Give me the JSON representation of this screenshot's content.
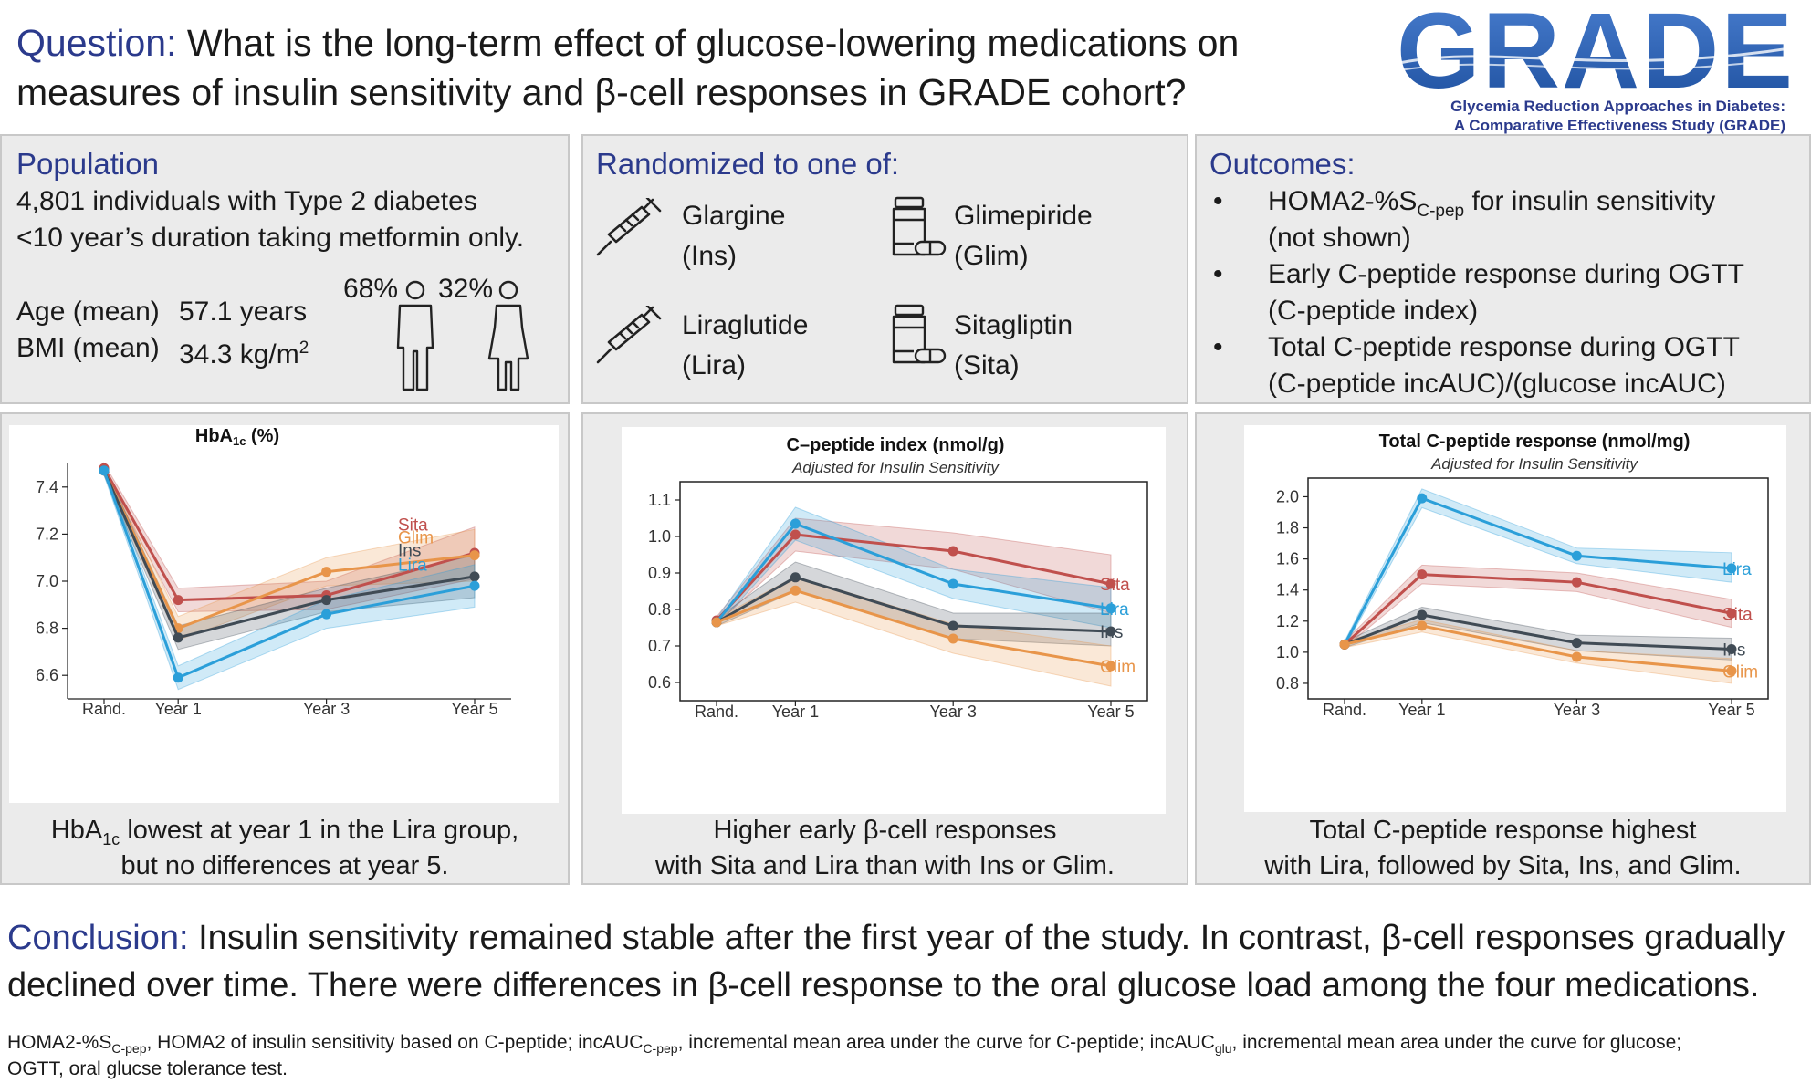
{
  "question": {
    "label": "Question:",
    "line1": "What is the long-term effect of glucose-lowering medications on",
    "line2": "measures of insulin sensitivity and β-cell responses in GRADE cohort?"
  },
  "logo": {
    "wordmark": "GRADE",
    "line1": "Glycemia Reduction Approaches in Diabetes:",
    "line2": "A Comparative Effectiveness Study (GRADE)"
  },
  "population": {
    "title": "Population",
    "line1": "4,801 individuals with Type 2 diabetes",
    "line2": "<10 year’s duration taking metformin only.",
    "age_label": "Age (mean)",
    "age_value": "57.1 years",
    "bmi_label": "BMI (mean)",
    "bmi_value": "34.3 kg/m",
    "bmi_sup": "2",
    "male_pct": "68%",
    "female_pct": "32%",
    "male_icon": "male-person-icon",
    "female_icon": "female-person-icon"
  },
  "randomized": {
    "title": "Randomized to one of:",
    "arms": [
      {
        "name": "Glargine",
        "abbr": "(Ins)",
        "icon": "syringe-icon"
      },
      {
        "name": "Glimepiride",
        "abbr": "(Glim)",
        "icon": "pill-bottle-icon"
      },
      {
        "name": "Liraglutide",
        "abbr": "(Lira)",
        "icon": "syringe-icon"
      },
      {
        "name": "Sitagliptin",
        "abbr": "(Sita)",
        "icon": "pill-bottle-icon"
      }
    ]
  },
  "outcomes": {
    "title": "Outcomes:",
    "bullet": "•",
    "items": [
      {
        "line1a": "HOMA2-%S",
        "line1sub": "C-pep",
        "line1b": " for insulin sensitivity",
        "line2": "(not shown)"
      },
      {
        "line1a": "Early C-peptide response during OGTT",
        "line2": "(C-peptide index)"
      },
      {
        "line1a": "Total C-peptide response during OGTT",
        "line2": "(C-peptide incAUC)/(glucose incAUC)"
      }
    ]
  },
  "captions": {
    "c1_a": "HbA",
    "c1_sub": "1c",
    "c1_b": " lowest at year 1 in the Lira group,",
    "c1_line2": "but no differences at year 5.",
    "c2_line1": "Higher early β-cell responses",
    "c2_line2": "with Sita and Lira than with Ins or Glim.",
    "c3_line1": "Total C-peptide response highest",
    "c3_line2": "with Lira, followed by  Sita, Ins, and Glim."
  },
  "conclusion": {
    "label": "Conclusion:",
    "line1": "Insulin sensitivity remained stable after the first year of the study. In contrast, β-cell responses gradually",
    "line2": "declined over time. There were differences in β-cell response to the oral glucose load among the four medications."
  },
  "footnote": {
    "p1": "HOMA2-%S",
    "s1": "C-pep",
    "p2": ", HOMA2 of insulin sensitivity based on C-peptide; incAUC",
    "s2": "C-pep",
    "p3": ", incremental mean area under the curve for C-peptide; incAUC",
    "s3": "glu",
    "p4": ", incremental mean area under the curve for glucose;",
    "line2": "OGTT, oral glucse tolerance test."
  },
  "colors": {
    "navy": "#2b3a8c",
    "sita": "#c0504d",
    "glim": "#e8954a",
    "ins": "#404b55",
    "lira": "#2b9fd9",
    "panel_bg": "#ebebeb"
  },
  "chart_data": [
    {
      "type": "line",
      "title": "HbA",
      "title_sub": "1c",
      "title_suffix": " (%)",
      "subtitle": "",
      "x": [
        "Rand.",
        "Year 1",
        "Year 3",
        "Year 5"
      ],
      "x_pos": [
        0,
        1,
        3,
        5
      ],
      "ylim": [
        6.5,
        7.5
      ],
      "yticks": [
        6.6,
        6.8,
        7.0,
        7.2,
        7.4
      ],
      "framed": false,
      "series": [
        {
          "name": "Sita",
          "color": "#c0504d",
          "values": [
            7.48,
            6.92,
            6.94,
            7.12
          ],
          "lower": [
            7.46,
            6.87,
            6.88,
            7.01
          ],
          "upper": [
            7.5,
            6.97,
            7.0,
            7.23
          ]
        },
        {
          "name": "Glim",
          "color": "#e8954a",
          "values": [
            7.47,
            6.8,
            7.04,
            7.11
          ],
          "lower": [
            7.45,
            6.75,
            6.98,
            7.0
          ],
          "upper": [
            7.49,
            6.85,
            7.1,
            7.22
          ]
        },
        {
          "name": "Ins",
          "color": "#404b55",
          "values": [
            7.47,
            6.76,
            6.92,
            7.02
          ],
          "lower": [
            7.45,
            6.71,
            6.87,
            6.93
          ],
          "upper": [
            7.49,
            6.81,
            6.97,
            7.11
          ]
        },
        {
          "name": "Lira",
          "color": "#2b9fd9",
          "values": [
            7.47,
            6.59,
            6.86,
            6.98
          ],
          "lower": [
            7.45,
            6.54,
            6.8,
            6.89
          ],
          "upper": [
            7.49,
            6.64,
            6.92,
            7.07
          ]
        }
      ]
    },
    {
      "type": "line",
      "title": "C–peptide index (nmol/g)",
      "subtitle": "Adjusted for Insulin Sensitivity",
      "x": [
        "Rand.",
        "Year 1",
        "Year 3",
        "Year 5"
      ],
      "x_pos": [
        0,
        1,
        3,
        5
      ],
      "ylim": [
        0.55,
        1.15
      ],
      "yticks": [
        0.6,
        0.7,
        0.8,
        0.9,
        1.0,
        1.1
      ],
      "framed": true,
      "series": [
        {
          "name": "Sita",
          "color": "#c0504d",
          "values": [
            0.77,
            1.005,
            0.96,
            0.87
          ],
          "lower": [
            0.76,
            0.96,
            0.91,
            0.79
          ],
          "upper": [
            0.78,
            1.05,
            1.01,
            0.95
          ]
        },
        {
          "name": "Lira",
          "color": "#2b9fd9",
          "values": [
            0.765,
            1.035,
            0.87,
            0.803
          ],
          "lower": [
            0.755,
            0.99,
            0.83,
            0.75
          ],
          "upper": [
            0.775,
            1.08,
            0.91,
            0.86
          ]
        },
        {
          "name": "Ins",
          "color": "#404b55",
          "values": [
            0.765,
            0.888,
            0.755,
            0.74
          ],
          "lower": [
            0.755,
            0.85,
            0.72,
            0.7
          ],
          "upper": [
            0.775,
            0.93,
            0.79,
            0.79
          ]
        },
        {
          "name": "Glim",
          "color": "#e8954a",
          "values": [
            0.765,
            0.852,
            0.72,
            0.645
          ],
          "lower": [
            0.755,
            0.82,
            0.68,
            0.59
          ],
          "upper": [
            0.775,
            0.89,
            0.76,
            0.7
          ]
        }
      ]
    },
    {
      "type": "line",
      "title": "Total C-peptide response (nmol/mg)",
      "subtitle": "Adjusted for Insulin Sensitivity",
      "x": [
        "Rand.",
        "Year 1",
        "Year 3",
        "Year 5"
      ],
      "x_pos": [
        0,
        1,
        3,
        5
      ],
      "ylim": [
        0.7,
        2.12
      ],
      "yticks": [
        0.8,
        1.0,
        1.2,
        1.4,
        1.6,
        1.8,
        2.0
      ],
      "framed": true,
      "series": [
        {
          "name": "Lira",
          "color": "#2b9fd9",
          "values": [
            1.05,
            1.99,
            1.62,
            1.54
          ],
          "lower": [
            1.03,
            1.93,
            1.57,
            1.45
          ],
          "upper": [
            1.07,
            2.05,
            1.67,
            1.64
          ]
        },
        {
          "name": "Sita",
          "color": "#c0504d",
          "values": [
            1.05,
            1.5,
            1.45,
            1.25
          ],
          "lower": [
            1.03,
            1.44,
            1.39,
            1.16
          ],
          "upper": [
            1.07,
            1.56,
            1.51,
            1.34
          ]
        },
        {
          "name": "Ins",
          "color": "#404b55",
          "values": [
            1.05,
            1.24,
            1.06,
            1.02
          ],
          "lower": [
            1.03,
            1.19,
            1.01,
            0.95
          ],
          "upper": [
            1.07,
            1.29,
            1.11,
            1.09
          ]
        },
        {
          "name": "Glim",
          "color": "#e8954a",
          "values": [
            1.05,
            1.17,
            0.97,
            0.88
          ],
          "lower": [
            1.03,
            1.13,
            0.93,
            0.8
          ],
          "upper": [
            1.07,
            1.21,
            1.01,
            0.96
          ]
        }
      ]
    }
  ]
}
